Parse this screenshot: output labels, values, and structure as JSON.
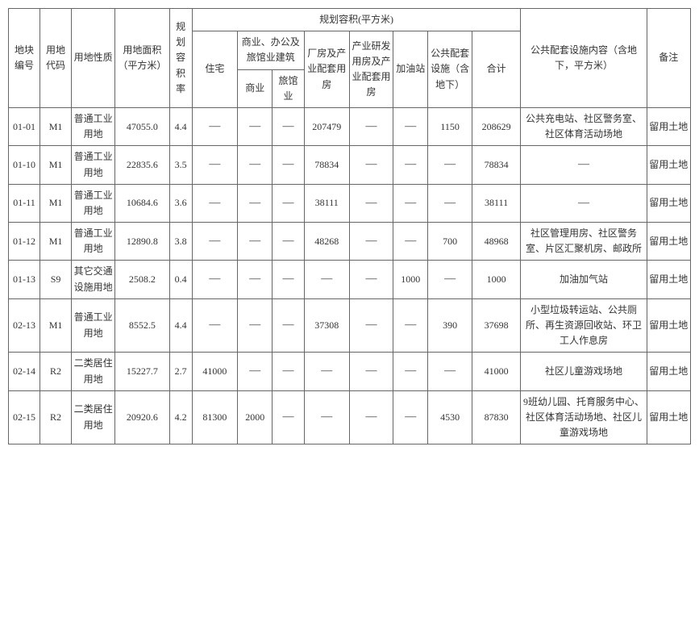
{
  "headers": {
    "plot_no": "地块编号",
    "land_code": "用地代码",
    "land_nature": "用地性质",
    "land_area": "用地面积（平方米）",
    "far": "规划容积率",
    "planned_area_group": "规划容积(平方米)",
    "residential": "住宅",
    "commercial_group": "商业、办公及旅馆业建筑",
    "commercial": "商业",
    "hotel": "旅馆业",
    "factory": "厂房及产业配套用房",
    "rnd": "产业研发用房及产业配套用房",
    "gas": "加油站",
    "public_fac": "公共配套设施（含地下）",
    "total": "合计",
    "public_content": "公共配套设施内容（含地下，平方米）",
    "remark": "备注"
  },
  "dash": "—",
  "rows": [
    {
      "plot_no": "01-01",
      "land_code": "M1",
      "land_nature": "普通工业用地",
      "land_area": "47055.0",
      "far": "4.4",
      "residential": "—",
      "commercial": "—",
      "hotel": "—",
      "factory": "207479",
      "rnd": "—",
      "gas": "—",
      "public_fac": "1150",
      "total": "208629",
      "public_content": "公共充电站、社区警务室、社区体育活动场地",
      "remark": "留用土地"
    },
    {
      "plot_no": "01-10",
      "land_code": "M1",
      "land_nature": "普通工业用地",
      "land_area": "22835.6",
      "far": "3.5",
      "residential": "—",
      "commercial": "—",
      "hotel": "—",
      "factory": "78834",
      "rnd": "—",
      "gas": "—",
      "public_fac": "—",
      "total": "78834",
      "public_content": "—",
      "remark": "留用土地"
    },
    {
      "plot_no": "01-11",
      "land_code": "M1",
      "land_nature": "普通工业用地",
      "land_area": "10684.6",
      "far": "3.6",
      "residential": "—",
      "commercial": "—",
      "hotel": "—",
      "factory": "38111",
      "rnd": "—",
      "gas": "—",
      "public_fac": "—",
      "total": "38111",
      "public_content": "—",
      "remark": "留用土地"
    },
    {
      "plot_no": "01-12",
      "land_code": "M1",
      "land_nature": "普通工业用地",
      "land_area": "12890.8",
      "far": "3.8",
      "residential": "—",
      "commercial": "—",
      "hotel": "—",
      "factory": "48268",
      "rnd": "—",
      "gas": "—",
      "public_fac": "700",
      "total": "48968",
      "public_content": "社区管理用房、社区警务室、片区汇聚机房、邮政所",
      "remark": "留用土地"
    },
    {
      "plot_no": "01-13",
      "land_code": "S9",
      "land_nature": "其它交通设施用地",
      "land_area": "2508.2",
      "far": "0.4",
      "residential": "—",
      "commercial": "—",
      "hotel": "—",
      "factory": "—",
      "rnd": "—",
      "gas": "1000",
      "public_fac": "—",
      "total": "1000",
      "public_content": "加油加气站",
      "remark": "留用土地"
    },
    {
      "plot_no": "02-13",
      "land_code": "M1",
      "land_nature": "普通工业用地",
      "land_area": "8552.5",
      "far": "4.4",
      "residential": "—",
      "commercial": "—",
      "hotel": "—",
      "factory": "37308",
      "rnd": "—",
      "gas": "—",
      "public_fac": "390",
      "total": "37698",
      "public_content": "小型垃圾转运站、公共厕所、再生资源回收站、环卫工人作息房",
      "remark": "留用土地"
    },
    {
      "plot_no": "02-14",
      "land_code": "R2",
      "land_nature": "二类居住用地",
      "land_area": "15227.7",
      "far": "2.7",
      "residential": "41000",
      "commercial": "—",
      "hotel": "—",
      "factory": "—",
      "rnd": "—",
      "gas": "—",
      "public_fac": "—",
      "total": "41000",
      "public_content": "社区儿童游戏场地",
      "remark": "留用土地"
    },
    {
      "plot_no": "02-15",
      "land_code": "R2",
      "land_nature": "二类居住用地",
      "land_area": "20920.6",
      "far": "4.2",
      "residential": "81300",
      "commercial": "2000",
      "hotel": "—",
      "factory": "—",
      "rnd": "—",
      "gas": "—",
      "public_fac": "4530",
      "total": "87830",
      "public_content": "9班幼儿园、托育服务中心、社区体育活动场地、社区儿童游戏场地",
      "remark": "留用土地"
    }
  ],
  "col_widths": {
    "plot_no": 36,
    "land_code": 36,
    "land_nature": 50,
    "land_area": 62,
    "far": 26,
    "residential": 52,
    "commercial": 40,
    "hotel": 36,
    "factory": 52,
    "rnd": 50,
    "gas": 40,
    "public_fac": 50,
    "total": 56,
    "public_content": 144,
    "remark": 50
  }
}
